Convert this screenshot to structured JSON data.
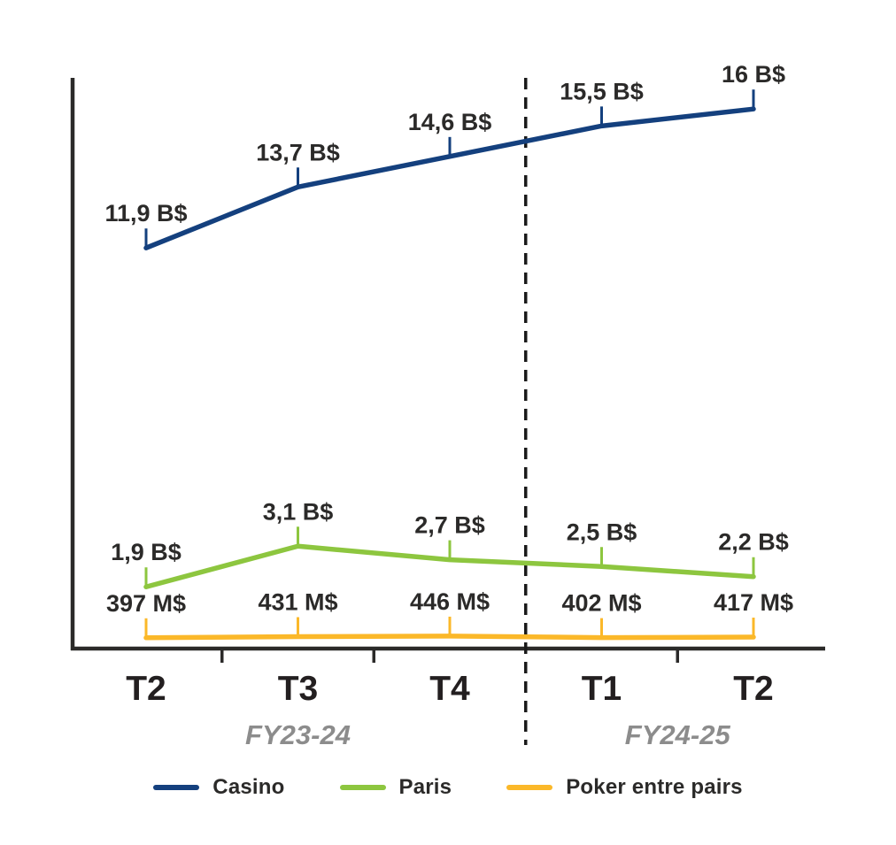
{
  "chart_data": {
    "type": "line",
    "title": "",
    "categories": [
      "T2",
      "T3",
      "T4",
      "T1",
      "T2"
    ],
    "period_groups": [
      {
        "label": "FY23-24",
        "category_indices": [
          0,
          1,
          2
        ]
      },
      {
        "label": "FY24-25",
        "category_indices": [
          3,
          4
        ]
      }
    ],
    "divider": {
      "style": "dashed",
      "between_category_indices": [
        2,
        3
      ]
    },
    "series": [
      {
        "name": "Casino",
        "color": "#14407E",
        "unit": "B$",
        "values": [
          11.9,
          13.7,
          14.6,
          15.5,
          16
        ],
        "point_labels": [
          "11,9 B$",
          "13,7 B$",
          "14,6 B$",
          "15,5 B$",
          "16 B$"
        ]
      },
      {
        "name": "Paris",
        "color": "#8DC63F",
        "unit": "B$",
        "values": [
          1.9,
          3.1,
          2.7,
          2.5,
          2.2
        ],
        "point_labels": [
          "1,9 B$",
          "3,1 B$",
          "2,7 B$",
          "2,5 B$",
          "2,2 B$"
        ]
      },
      {
        "name": "Poker entre pairs",
        "color": "#FBB829",
        "unit": "M$",
        "values": [
          397,
          431,
          446,
          402,
          417
        ],
        "point_labels": [
          "397 M$",
          "431 M$",
          "446 M$",
          "402 M$",
          "417 M$"
        ]
      }
    ],
    "ylim": [
      0,
      17
    ],
    "grid": false,
    "y_axis_ticks": "none",
    "legend_position": "bottom"
  },
  "colors": {
    "axis": "#2B2A29",
    "value_label": "#2B2A29",
    "category_label": "#231F20",
    "period_label": "#8C8C8C",
    "divider": "#1A1A1A",
    "background": "#FFFFFF"
  }
}
